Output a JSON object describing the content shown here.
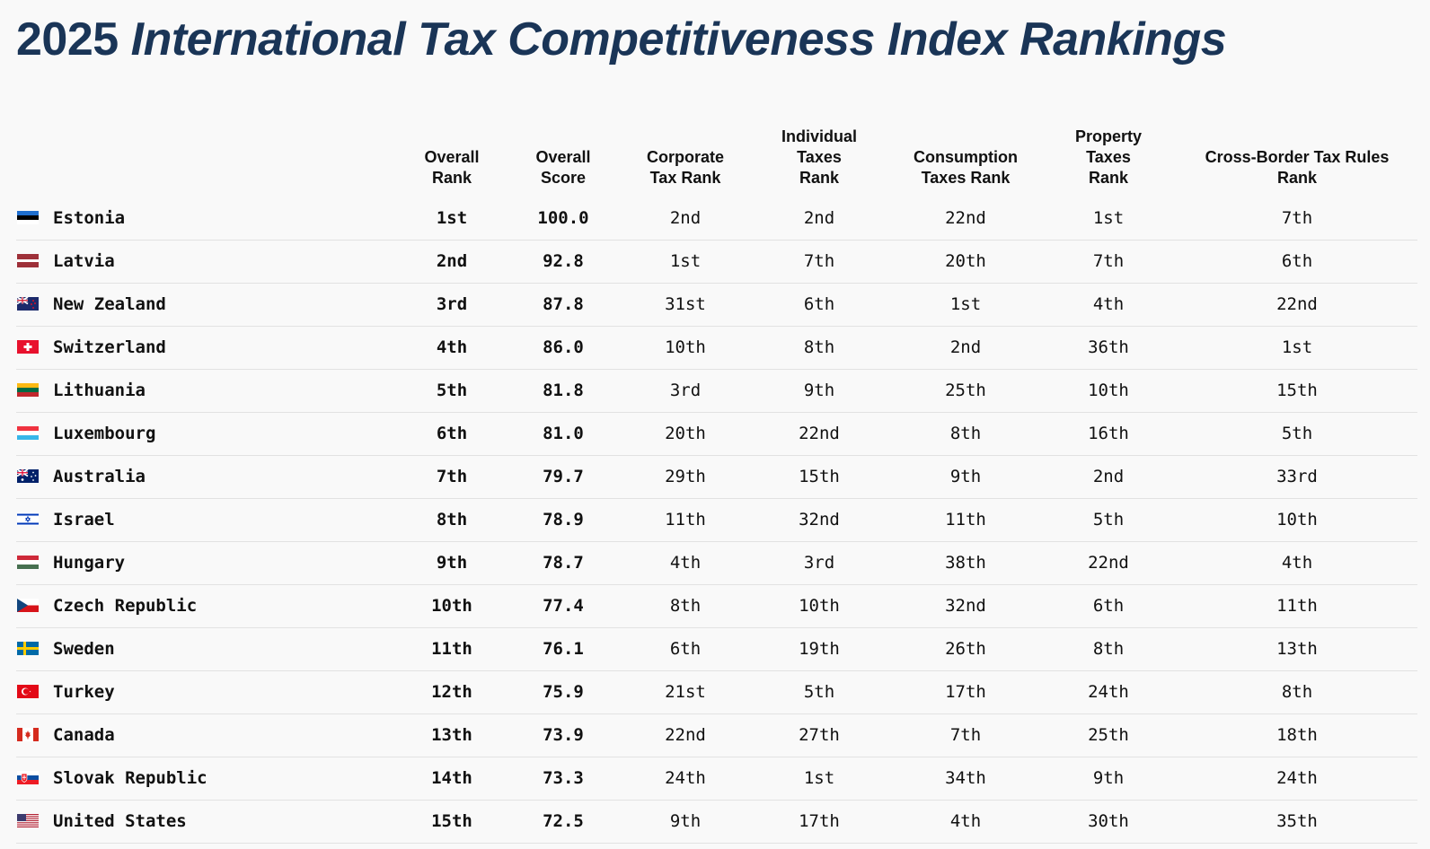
{
  "title": {
    "year": "2025",
    "rest": "International Tax Competitiveness Index Rankings"
  },
  "chart_data": {
    "type": "table",
    "columns": [
      {
        "key": "overall_rank",
        "label": [
          "Overall",
          "Rank"
        ]
      },
      {
        "key": "overall_score",
        "label": [
          "Overall",
          "Score"
        ]
      },
      {
        "key": "corporate",
        "label": [
          "Corporate",
          "Tax Rank"
        ]
      },
      {
        "key": "individual",
        "label": [
          "Individual",
          "Taxes",
          "Rank"
        ]
      },
      {
        "key": "consumption",
        "label": [
          "Consumption",
          "Taxes Rank"
        ]
      },
      {
        "key": "property",
        "label": [
          "Property",
          "Taxes",
          "Rank"
        ]
      },
      {
        "key": "crossborder",
        "label": [
          "Cross-Border Tax Rules",
          "Rank"
        ]
      }
    ],
    "rows": [
      {
        "country": "Estonia",
        "flag": "estonia-flag-icon",
        "values": [
          "1st",
          "100.0",
          "2nd",
          "2nd",
          "22nd",
          "1st",
          "7th"
        ]
      },
      {
        "country": "Latvia",
        "flag": "latvia-flag-icon",
        "values": [
          "2nd",
          "92.8",
          "1st",
          "7th",
          "20th",
          "7th",
          "6th"
        ]
      },
      {
        "country": "New Zealand",
        "flag": "new-zealand-flag-icon",
        "values": [
          "3rd",
          "87.8",
          "31st",
          "6th",
          "1st",
          "4th",
          "22nd"
        ]
      },
      {
        "country": "Switzerland",
        "flag": "switzerland-flag-icon",
        "values": [
          "4th",
          "86.0",
          "10th",
          "8th",
          "2nd",
          "36th",
          "1st"
        ]
      },
      {
        "country": "Lithuania",
        "flag": "lithuania-flag-icon",
        "values": [
          "5th",
          "81.8",
          "3rd",
          "9th",
          "25th",
          "10th",
          "15th"
        ]
      },
      {
        "country": "Luxembourg",
        "flag": "luxembourg-flag-icon",
        "values": [
          "6th",
          "81.0",
          "20th",
          "22nd",
          "8th",
          "16th",
          "5th"
        ]
      },
      {
        "country": "Australia",
        "flag": "australia-flag-icon",
        "values": [
          "7th",
          "79.7",
          "29th",
          "15th",
          "9th",
          "2nd",
          "33rd"
        ]
      },
      {
        "country": "Israel",
        "flag": "israel-flag-icon",
        "values": [
          "8th",
          "78.9",
          "11th",
          "32nd",
          "11th",
          "5th",
          "10th"
        ]
      },
      {
        "country": "Hungary",
        "flag": "hungary-flag-icon",
        "values": [
          "9th",
          "78.7",
          "4th",
          "3rd",
          "38th",
          "22nd",
          "4th"
        ]
      },
      {
        "country": "Czech Republic",
        "flag": "czech-republic-flag-icon",
        "values": [
          "10th",
          "77.4",
          "8th",
          "10th",
          "32nd",
          "6th",
          "11th"
        ]
      },
      {
        "country": "Sweden",
        "flag": "sweden-flag-icon",
        "values": [
          "11th",
          "76.1",
          "6th",
          "19th",
          "26th",
          "8th",
          "13th"
        ]
      },
      {
        "country": "Turkey",
        "flag": "turkey-flag-icon",
        "values": [
          "12th",
          "75.9",
          "21st",
          "5th",
          "17th",
          "24th",
          "8th"
        ]
      },
      {
        "country": "Canada",
        "flag": "canada-flag-icon",
        "values": [
          "13th",
          "73.9",
          "22nd",
          "27th",
          "7th",
          "25th",
          "18th"
        ]
      },
      {
        "country": "Slovak Republic",
        "flag": "slovak-republic-flag-icon",
        "values": [
          "14th",
          "73.3",
          "24th",
          "1st",
          "34th",
          "9th",
          "24th"
        ]
      },
      {
        "country": "United States",
        "flag": "united-states-flag-icon",
        "values": [
          "15th",
          "72.5",
          "9th",
          "17th",
          "4th",
          "30th",
          "35th"
        ]
      }
    ]
  }
}
